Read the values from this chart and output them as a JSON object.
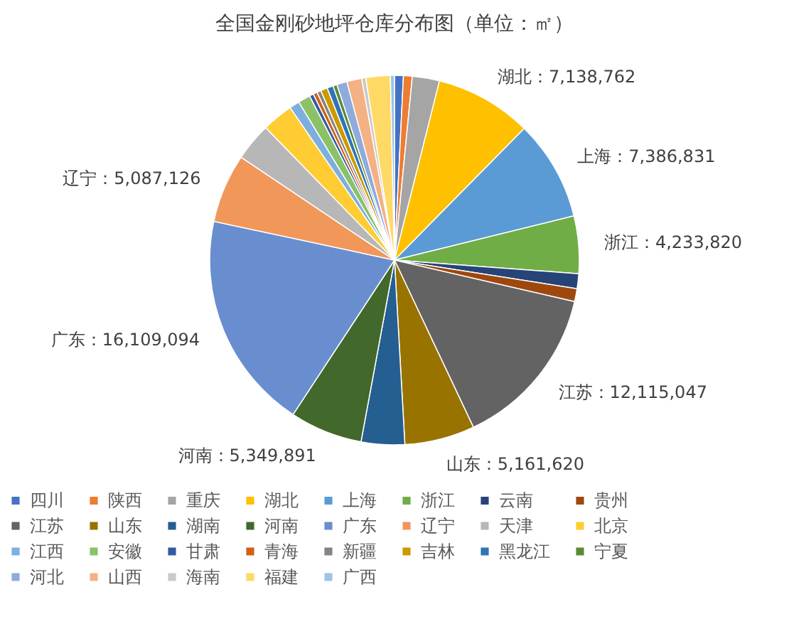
{
  "chart_data": {
    "type": "pie",
    "title": "全国金刚砂地坪仓库分布图（单位：㎡）",
    "categories": [
      "四川",
      "陕西",
      "重庆",
      "湖北",
      "上海",
      "浙江",
      "云南",
      "贵州",
      "江苏",
      "山东",
      "湖南",
      "河南",
      "广东",
      "辽宁",
      "天津",
      "北京",
      "江西",
      "安徽",
      "甘肃",
      "青海",
      "新疆",
      "吉林",
      "黑龙江",
      "宁夏",
      "河北",
      "山西",
      "海南",
      "福建",
      "广西"
    ],
    "values": [
      650000,
      650000,
      2000000,
      7138762,
      7386831,
      4233820,
      1100000,
      950000,
      12115047,
      5161620,
      3200000,
      5349891,
      16109094,
      5087126,
      2800000,
      2300000,
      750000,
      900000,
      300000,
      300000,
      300000,
      500000,
      450000,
      300000,
      750000,
      1100000,
      300000,
      1800000,
      300000
    ],
    "value_labels": [
      null,
      null,
      null,
      "湖北：7,138,762",
      "上海：7,386,831",
      "浙江：4,233,820",
      null,
      null,
      "江苏：12,115,047",
      "山东：5,161,620",
      null,
      "河南：5,349,891",
      "广东：16,109,094",
      "辽宁：5,087,126",
      null,
      null,
      null,
      null,
      null,
      null,
      null,
      null,
      null,
      null,
      null,
      null,
      null,
      null,
      null
    ],
    "colors": [
      "#4472c4",
      "#ed7d31",
      "#a5a5a5",
      "#ffc000",
      "#5b9bd5",
      "#70ad47",
      "#264478",
      "#9e480e",
      "#636363",
      "#997300",
      "#255e91",
      "#43682b",
      "#698ed0",
      "#f1975a",
      "#b7b7b7",
      "#ffcd33",
      "#7cafdd",
      "#8cc168",
      "#335aa1",
      "#d26012",
      "#848484",
      "#cc9a00",
      "#2e75b6",
      "#5a8a39",
      "#8faadc",
      "#f4b183",
      "#c9c9c9",
      "#ffd966",
      "#9dc3e6"
    ],
    "legend": "bottom"
  }
}
